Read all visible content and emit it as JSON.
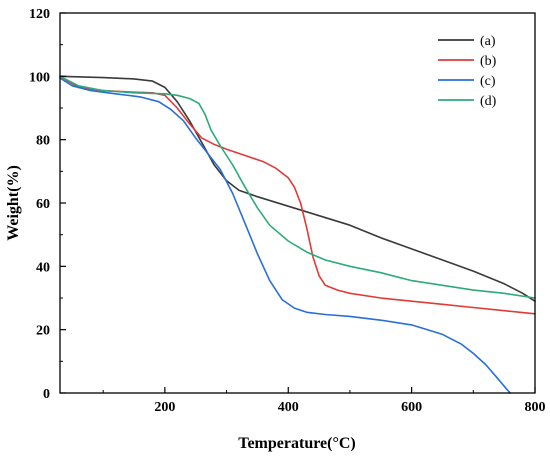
{
  "chart_data": {
    "type": "line",
    "xlabel": "Temperature(°C)",
    "ylabel": "Weight(%)",
    "xlim": [
      30,
      800
    ],
    "ylim": [
      0,
      120
    ],
    "x_ticks": [
      200,
      400,
      600,
      800
    ],
    "y_ticks": [
      0,
      20,
      40,
      60,
      80,
      100,
      120
    ],
    "grid": false,
    "legend_position": "top-right",
    "series": [
      {
        "name": "(a)",
        "color": "#3a3a3a",
        "points": [
          [
            30,
            100
          ],
          [
            100,
            99.6
          ],
          [
            150,
            99.2
          ],
          [
            180,
            98.5
          ],
          [
            200,
            96.5
          ],
          [
            220,
            92
          ],
          [
            240,
            86
          ],
          [
            260,
            79
          ],
          [
            280,
            72
          ],
          [
            300,
            67
          ],
          [
            320,
            64
          ],
          [
            350,
            62
          ],
          [
            400,
            59
          ],
          [
            450,
            56
          ],
          [
            500,
            53
          ],
          [
            550,
            49
          ],
          [
            600,
            45.5
          ],
          [
            650,
            42
          ],
          [
            700,
            38.5
          ],
          [
            750,
            34.5
          ],
          [
            780,
            31.5
          ],
          [
            800,
            29
          ]
        ]
      },
      {
        "name": "(b)",
        "color": "#e03b3b",
        "points": [
          [
            30,
            100
          ],
          [
            60,
            96.5
          ],
          [
            100,
            95.5
          ],
          [
            150,
            95
          ],
          [
            180,
            94.8
          ],
          [
            200,
            94
          ],
          [
            220,
            90
          ],
          [
            240,
            85
          ],
          [
            260,
            80.5
          ],
          [
            280,
            78.5
          ],
          [
            300,
            77
          ],
          [
            330,
            75
          ],
          [
            360,
            73
          ],
          [
            380,
            71
          ],
          [
            400,
            68
          ],
          [
            410,
            65
          ],
          [
            420,
            60
          ],
          [
            430,
            52
          ],
          [
            440,
            43
          ],
          [
            450,
            37
          ],
          [
            460,
            34
          ],
          [
            480,
            32.5
          ],
          [
            500,
            31.5
          ],
          [
            550,
            30
          ],
          [
            600,
            29
          ],
          [
            650,
            28
          ],
          [
            700,
            27
          ],
          [
            750,
            26
          ],
          [
            800,
            25
          ]
        ]
      },
      {
        "name": "(c)",
        "color": "#2a6fd6",
        "points": [
          [
            30,
            99.5
          ],
          [
            50,
            97
          ],
          [
            80,
            95.5
          ],
          [
            120,
            94.5
          ],
          [
            160,
            93.5
          ],
          [
            190,
            92
          ],
          [
            210,
            89.5
          ],
          [
            230,
            86
          ],
          [
            250,
            80.5
          ],
          [
            270,
            75.5
          ],
          [
            290,
            70.5
          ],
          [
            310,
            63
          ],
          [
            330,
            53.5
          ],
          [
            350,
            44
          ],
          [
            370,
            35.5
          ],
          [
            390,
            29.5
          ],
          [
            410,
            26.8
          ],
          [
            430,
            25.5
          ],
          [
            460,
            24.8
          ],
          [
            500,
            24.2
          ],
          [
            550,
            23
          ],
          [
            600,
            21.5
          ],
          [
            650,
            18.5
          ],
          [
            680,
            15.5
          ],
          [
            700,
            12.5
          ],
          [
            720,
            9
          ],
          [
            740,
            4.5
          ],
          [
            755,
            1
          ],
          [
            760,
            0
          ]
        ]
      },
      {
        "name": "(d)",
        "color": "#2eaa7a",
        "points": [
          [
            30,
            100
          ],
          [
            60,
            97
          ],
          [
            100,
            95.5
          ],
          [
            150,
            94.8
          ],
          [
            200,
            94.5
          ],
          [
            220,
            94
          ],
          [
            240,
            93
          ],
          [
            255,
            91.5
          ],
          [
            265,
            88
          ],
          [
            275,
            83
          ],
          [
            290,
            78
          ],
          [
            310,
            72
          ],
          [
            330,
            65
          ],
          [
            350,
            58.5
          ],
          [
            370,
            53
          ],
          [
            400,
            48
          ],
          [
            430,
            44.5
          ],
          [
            460,
            42
          ],
          [
            500,
            40
          ],
          [
            550,
            38
          ],
          [
            600,
            35.5
          ],
          [
            650,
            34
          ],
          [
            700,
            32.5
          ],
          [
            750,
            31.5
          ],
          [
            800,
            30
          ]
        ]
      }
    ]
  }
}
